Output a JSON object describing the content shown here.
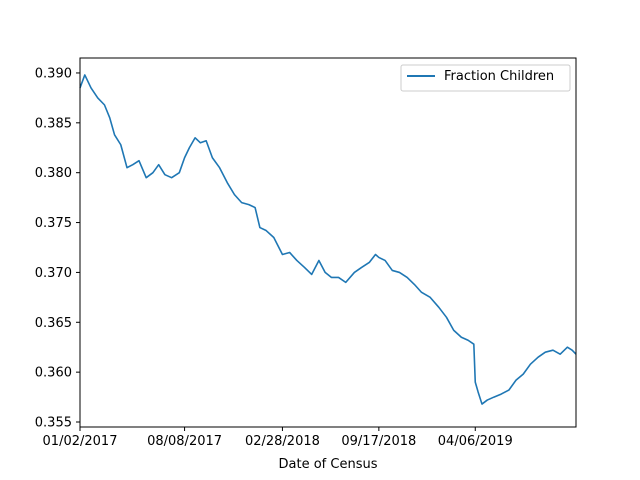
{
  "chart_data": {
    "type": "line",
    "title": "",
    "xlabel": "Date of Census",
    "ylabel": "",
    "x_tick_labels": [
      "01/02/2017",
      "08/08/2017",
      "02/28/2018",
      "09/17/2018",
      "04/06/2019"
    ],
    "y_ticks": [
      0.355,
      0.36,
      0.365,
      0.37,
      0.375,
      0.38,
      0.385,
      0.39
    ],
    "y_tick_labels": [
      "0.355",
      "0.360",
      "0.365",
      "0.370",
      "0.375",
      "0.380",
      "0.385",
      "0.390"
    ],
    "ylim": [
      0.3545,
      0.3915
    ],
    "grid": false,
    "legend_position": "top-right",
    "series": [
      {
        "name": "Fraction Children",
        "color": "#1f77b4",
        "points": [
          [
            "01/02/2017",
            0.3885
          ],
          [
            "01/12/2017",
            0.3898
          ],
          [
            "01/25/2017",
            0.3885
          ],
          [
            "02/08/2017",
            0.3875
          ],
          [
            "02/22/2017",
            0.3868
          ],
          [
            "03/05/2017",
            0.3855
          ],
          [
            "03/15/2017",
            0.3838
          ],
          [
            "03/28/2017",
            0.3828
          ],
          [
            "04/10/2017",
            0.3805
          ],
          [
            "04/22/2017",
            0.3808
          ],
          [
            "05/05/2017",
            0.3812
          ],
          [
            "05/20/2017",
            0.3795
          ],
          [
            "06/03/2017",
            0.38
          ],
          [
            "06/15/2017",
            0.3808
          ],
          [
            "06/28/2017",
            0.3798
          ],
          [
            "07/12/2017",
            0.3795
          ],
          [
            "07/28/2017",
            0.38
          ],
          [
            "08/08/2017",
            0.3815
          ],
          [
            "08/18/2017",
            0.3825
          ],
          [
            "08/30/2017",
            0.3835
          ],
          [
            "09/10/2017",
            0.383
          ],
          [
            "09/22/2017",
            0.3832
          ],
          [
            "10/05/2017",
            0.3815
          ],
          [
            "10/20/2017",
            0.3805
          ],
          [
            "11/05/2017",
            0.379
          ],
          [
            "11/20/2017",
            0.3778
          ],
          [
            "12/05/2017",
            0.377
          ],
          [
            "12/20/2017",
            0.3768
          ],
          [
            "01/02/2018",
            0.3765
          ],
          [
            "01/12/2018",
            0.3745
          ],
          [
            "01/25/2018",
            0.3742
          ],
          [
            "02/10/2018",
            0.3735
          ],
          [
            "02/28/2018",
            0.3718
          ],
          [
            "03/15/2018",
            0.372
          ],
          [
            "03/30/2018",
            0.3712
          ],
          [
            "04/15/2018",
            0.3705
          ],
          [
            "04/30/2018",
            0.3698
          ],
          [
            "05/15/2018",
            0.3712
          ],
          [
            "05/28/2018",
            0.37
          ],
          [
            "06/10/2018",
            0.3695
          ],
          [
            "06/25/2018",
            0.3695
          ],
          [
            "07/10/2018",
            0.369
          ],
          [
            "07/28/2018",
            0.37
          ],
          [
            "08/12/2018",
            0.3705
          ],
          [
            "08/28/2018",
            0.371
          ],
          [
            "09/10/2018",
            0.3718
          ],
          [
            "09/17/2018",
            0.3715
          ],
          [
            "09/30/2018",
            0.3712
          ],
          [
            "10/15/2018",
            0.3702
          ],
          [
            "10/30/2018",
            0.37
          ],
          [
            "11/15/2018",
            0.3695
          ],
          [
            "11/30/2018",
            0.3688
          ],
          [
            "12/15/2018",
            0.368
          ],
          [
            "01/02/2019",
            0.3675
          ],
          [
            "01/20/2019",
            0.3665
          ],
          [
            "02/05/2019",
            0.3655
          ],
          [
            "02/20/2019",
            0.3642
          ],
          [
            "03/08/2019",
            0.3635
          ],
          [
            "03/22/2019",
            0.3632
          ],
          [
            "04/03/2019",
            0.3628
          ],
          [
            "04/06/2019",
            0.359
          ],
          [
            "04/12/2019",
            0.358
          ],
          [
            "04/20/2019",
            0.3568
          ],
          [
            "05/01/2019",
            0.3572
          ],
          [
            "05/15/2019",
            0.3575
          ],
          [
            "05/30/2019",
            0.3578
          ],
          [
            "06/15/2019",
            0.3582
          ],
          [
            "06/30/2019",
            0.3592
          ],
          [
            "07/15/2019",
            0.3598
          ],
          [
            "07/30/2019",
            0.3608
          ],
          [
            "08/15/2019",
            0.3615
          ],
          [
            "08/30/2019",
            0.362
          ],
          [
            "09/15/2019",
            0.3622
          ],
          [
            "09/30/2019",
            0.3618
          ],
          [
            "10/15/2019",
            0.3625
          ],
          [
            "10/25/2019",
            0.3622
          ],
          [
            "11/02/2019",
            0.3618
          ]
        ]
      }
    ]
  }
}
